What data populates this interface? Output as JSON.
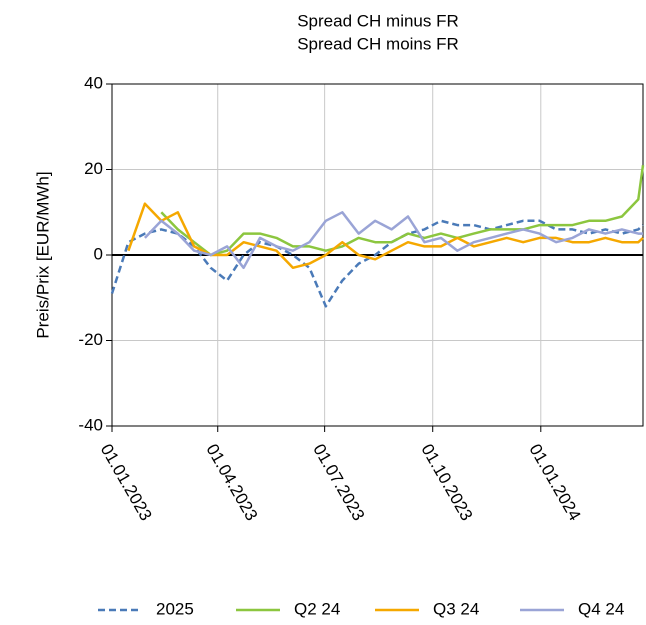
{
  "chart_data": {
    "type": "line",
    "title": "Spread CH minus FR",
    "subtitle": "Spread CH moins FR",
    "y_label": "Preis/Prix [EUR/MWh]",
    "x": [
      "01.01.2023",
      "15.01.2023",
      "29.01.2023",
      "12.02.2023",
      "26.02.2023",
      "12.03.2023",
      "26.03.2023",
      "09.04.2023",
      "23.04.2023",
      "07.05.2023",
      "21.05.2023",
      "04.06.2023",
      "18.06.2023",
      "02.07.2023",
      "16.07.2023",
      "30.07.2023",
      "13.08.2023",
      "27.08.2023",
      "10.09.2023",
      "24.09.2023",
      "08.10.2023",
      "22.10.2023",
      "05.11.2023",
      "19.11.2023",
      "03.12.2023",
      "17.12.2023",
      "31.12.2023",
      "14.01.2024",
      "28.01.2024",
      "11.02.2024",
      "25.02.2024",
      "10.03.2024",
      "24.03.2024",
      "28.03.2024"
    ],
    "series": [
      {
        "name": "2025",
        "color": "#4a7ab8",
        "dashed": true,
        "values": [
          -9,
          3,
          5,
          6,
          5,
          2,
          -3,
          -6,
          0,
          3,
          2,
          0,
          -3,
          -12,
          -6,
          -2,
          0,
          3,
          5,
          6,
          8,
          7,
          7,
          6,
          7,
          8,
          8,
          6,
          6,
          5,
          6,
          5,
          6,
          7
        ]
      },
      {
        "name": "Q2 24",
        "color": "#8cc63f",
        "values": [
          null,
          null,
          null,
          10,
          6,
          3,
          0,
          1,
          5,
          5,
          4,
          2,
          2,
          1,
          2,
          4,
          3,
          3,
          5,
          4,
          5,
          4,
          5,
          6,
          6,
          6,
          7,
          7,
          7,
          8,
          8,
          9,
          13,
          21
        ]
      },
      {
        "name": "Q3 24",
        "color": "#f5a800",
        "values": [
          null,
          1,
          12,
          8,
          10,
          2,
          0,
          0,
          3,
          2,
          1,
          -3,
          -2,
          0,
          3,
          0,
          -1,
          1,
          3,
          2,
          2,
          4,
          2,
          3,
          4,
          3,
          4,
          4,
          3,
          3,
          4,
          3,
          3,
          4
        ]
      },
      {
        "name": "Q4 24",
        "color": "#9aa4d6",
        "values": [
          null,
          null,
          4,
          8,
          5,
          1,
          0,
          2,
          -3,
          4,
          2,
          1,
          3,
          8,
          10,
          5,
          8,
          6,
          9,
          3,
          4,
          1,
          3,
          4,
          5,
          6,
          5,
          3,
          4,
          6,
          5,
          6,
          5,
          5
        ]
      }
    ],
    "xlim": [
      "01.01.2023",
      "28.03.2024"
    ],
    "xticks": [
      "01.01.2023",
      "01.04.2023",
      "01.07.2023",
      "01.10.2023",
      "01.01.2024"
    ],
    "ylim": [
      -40,
      40
    ],
    "yticks": [
      -40,
      -20,
      0,
      20,
      40
    ],
    "hline": 0,
    "grid": true,
    "legend": "bottom"
  }
}
